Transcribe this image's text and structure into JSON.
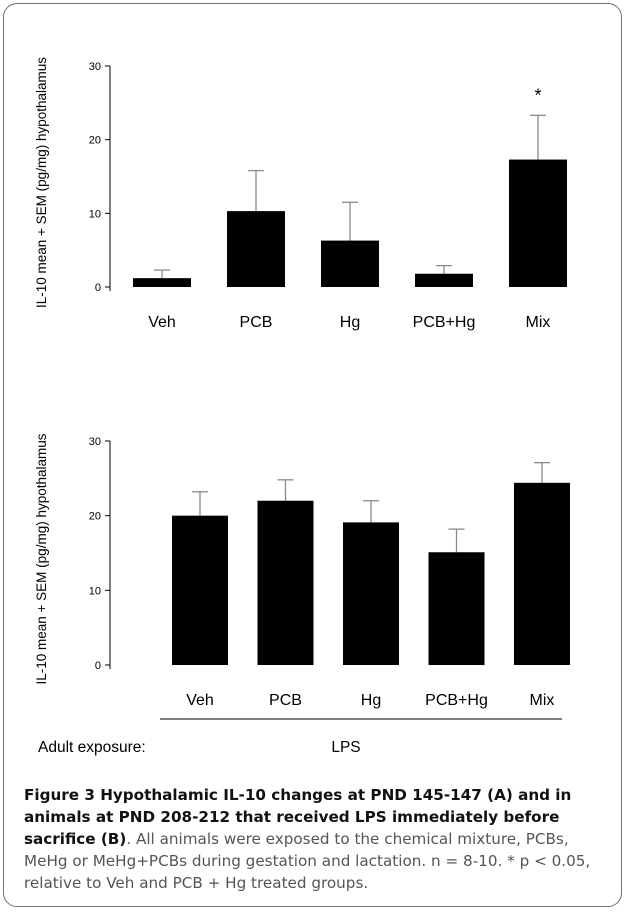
{
  "chart_data": [
    {
      "type": "bar",
      "ylabel": "IL-10 mean + SEM (pg/mg) hypothalamus",
      "categories": [
        "Veh",
        "PCB",
        "Hg",
        "PCB+Hg",
        "Mix"
      ],
      "values": [
        1.2,
        10.3,
        6.3,
        1.8,
        17.3
      ],
      "errors": [
        1.1,
        5.5,
        5.2,
        1.1,
        6.0
      ],
      "ylim": [
        0,
        30
      ],
      "yticks": [
        "0",
        "10",
        "20",
        "30"
      ],
      "annotations": [
        {
          "category": "Mix",
          "text": "*"
        }
      ],
      "grid": false
    },
    {
      "type": "bar",
      "ylabel": "IL-10 mean + SEM (pg/mg) hypothalamus",
      "categories": [
        "Veh",
        "PCB",
        "Hg",
        "PCB+Hg",
        "Mix"
      ],
      "values": [
        20.0,
        22.0,
        19.1,
        15.1,
        24.4
      ],
      "errors": [
        3.2,
        2.8,
        2.9,
        3.1,
        2.7
      ],
      "ylim": [
        0,
        30
      ],
      "yticks": [
        "0",
        "10",
        "20",
        "30"
      ],
      "group_label": "LPS",
      "group_prefix": "Adult exposure:",
      "grid": false
    }
  ],
  "caption": {
    "bold": "Figure 3 Hypothalamic IL-10 changes at PND 145-147 (A) and in animals at PND 208-212 that received LPS immediately before sacrifice (B)",
    "text": ". All animals were exposed to the chemical mixture, PCBs, MeHg or MeHg+PCBs during gestation and lactation. n = 8-10. * p < 0.05, relative to Veh and PCB + Hg treated groups."
  }
}
